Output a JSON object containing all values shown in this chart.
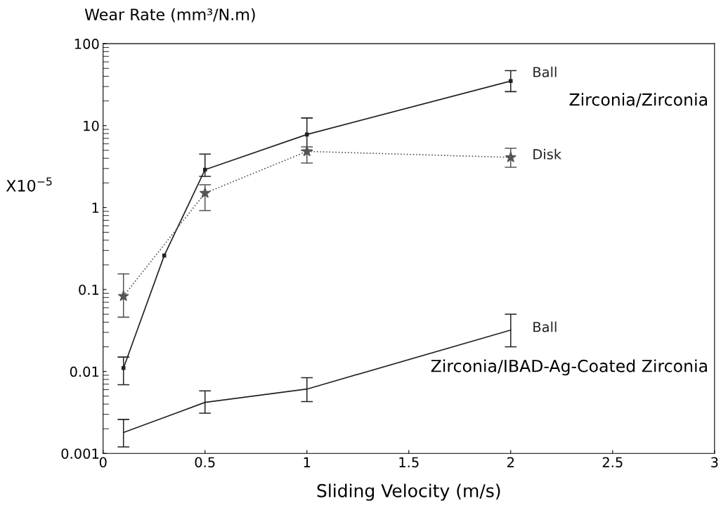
{
  "chart_data": {
    "type": "line",
    "xlabel": "Sliding Velocity (m/s)",
    "ylabel": "Wear Rate (mm³/N.m)",
    "log": "y",
    "xlim": [
      0,
      3
    ],
    "ylim": [
      0.001,
      100
    ],
    "xticks": [
      0,
      0.5,
      1,
      1.5,
      2,
      2.5,
      3
    ],
    "yticks": [
      0.001,
      0.01,
      0.1,
      1,
      10,
      100
    ],
    "grid": false,
    "legend": false,
    "annotations": [
      "X10$^{−5}$",
      "Zirconia/Zirconia",
      "Zirconia/IBAD-Ag-Coated Zirconia"
    ],
    "series": [
      {
        "name": "Ball",
        "color": "#222222",
        "marker": "square",
        "line_style": "solid",
        "x": [
          0.1,
          0.3,
          0.5,
          1,
          2
        ],
        "values": [
          0.011,
          0.26,
          2.9,
          7.8,
          35
        ],
        "errors": [
          [
            0.0069,
            0.015
          ],
          null,
          [
            2.4,
            4.5
          ],
          [
            5,
            12.4
          ],
          [
            26,
            47
          ]
        ]
      },
      {
        "name": "Disk",
        "color": "#555555",
        "marker": "star",
        "line_style": "dotted",
        "x": [
          0.1,
          0.5,
          1,
          2
        ],
        "values": [
          0.083,
          1.5,
          4.85,
          4.1
        ],
        "errors": [
          [
            0.046,
            0.155
          ],
          [
            0.92,
            1.9
          ],
          [
            3.5,
            5.5
          ],
          [
            3.1,
            5.3
          ]
        ]
      },
      {
        "name": "Ball",
        "color": "#222222",
        "marker": "none",
        "line_style": "solid",
        "x": [
          0.1,
          0.5,
          1,
          2
        ],
        "values": [
          0.0018,
          0.0042,
          0.0061,
          0.032
        ],
        "errors": [
          [
            0.0012,
            0.0026
          ],
          [
            0.0031,
            0.0058
          ],
          [
            0.0043,
            0.0084
          ],
          [
            0.02,
            0.05
          ]
        ]
      }
    ]
  }
}
